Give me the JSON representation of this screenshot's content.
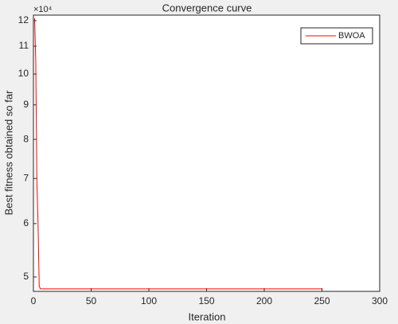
{
  "chart_data": {
    "type": "line",
    "title": "Convergence curve",
    "x_label": "Iteration",
    "y_label": "Best fitness obtained so far",
    "y_exponent_label": "×10⁴",
    "x": [
      1,
      2,
      3,
      4,
      5,
      6,
      250
    ],
    "series": [
      {
        "name": "BWOA",
        "color": "#ff0000",
        "values": [
          12.1,
          10.5,
          6.9,
          6.0,
          4.85,
          4.8,
          4.8
        ]
      }
    ],
    "xlim": [
      0,
      300
    ],
    "xticks": [
      0,
      50,
      100,
      150,
      200,
      250,
      300
    ],
    "ylim": [
      4.76,
      12.23
    ],
    "yticks": [
      5,
      6,
      7,
      8,
      9,
      10,
      11,
      12
    ],
    "y_log": true,
    "legend": "northeast"
  }
}
